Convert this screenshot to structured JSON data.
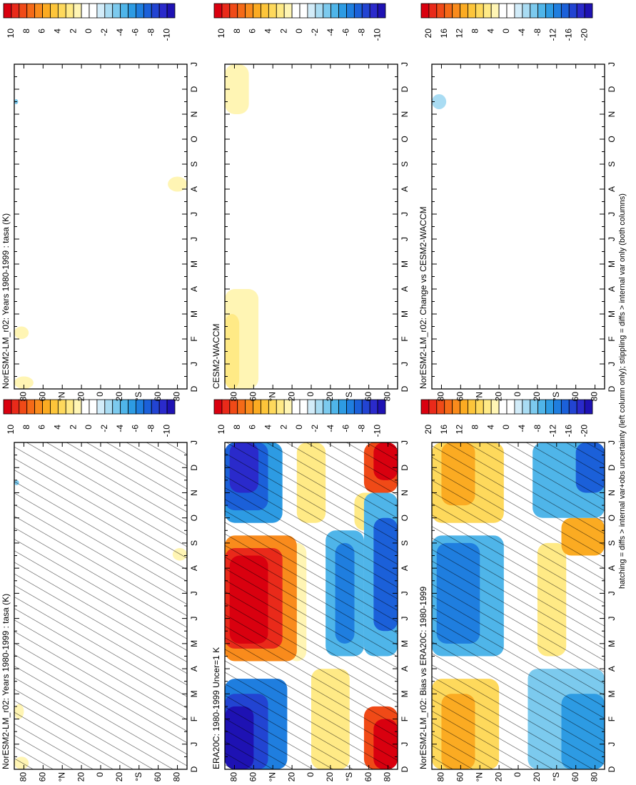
{
  "chart_data": [
    {
      "type": "contour",
      "title": "NorESM2-LM_r02: Years 1980-1999 : tasa (K)",
      "hatching": true,
      "categories": [
        "D",
        "J",
        "F",
        "M",
        "A",
        "M",
        "J",
        "J",
        "A",
        "S",
        "O",
        "N",
        "D",
        "J"
      ],
      "ylim": [
        90,
        -90
      ],
      "yticks": [
        {
          "value": 80,
          "label": "80"
        },
        {
          "value": 60,
          "label": "60"
        },
        {
          "value": 40,
          "label": "°N"
        },
        {
          "value": 20,
          "label": "20"
        },
        {
          "value": 0,
          "label": "0"
        },
        {
          "value": -20,
          "label": "20"
        },
        {
          "value": -40,
          "label": "°S"
        },
        {
          "value": -60,
          "label": "60"
        },
        {
          "value": -80,
          "label": "80"
        }
      ],
      "colorbar_ticks": [
        10,
        8,
        6,
        4,
        2,
        0,
        -2,
        -4,
        -6,
        -8,
        -10
      ]
    },
    {
      "type": "contour",
      "title": "NorESM2-LM_r02: Years 1980-1999 : tasa (K)",
      "hatching": false,
      "categories": [
        "D",
        "J",
        "F",
        "M",
        "A",
        "M",
        "J",
        "J",
        "A",
        "S",
        "O",
        "N",
        "D",
        "J"
      ],
      "ylim": [
        90,
        -90
      ],
      "yticks": [
        {
          "value": 80,
          "label": "80"
        },
        {
          "value": 60,
          "label": "60"
        },
        {
          "value": 40,
          "label": "°N"
        },
        {
          "value": 20,
          "label": "20"
        },
        {
          "value": 0,
          "label": "0"
        },
        {
          "value": -20,
          "label": "20"
        },
        {
          "value": -40,
          "label": "°S"
        },
        {
          "value": -60,
          "label": "60"
        },
        {
          "value": -80,
          "label": "80"
        }
      ],
      "colorbar_ticks": [
        10,
        8,
        6,
        4,
        2,
        0,
        -2,
        -4,
        -6,
        -8,
        -10
      ]
    },
    {
      "type": "contour",
      "title": "ERA20C: 1980-1999 Uncer=1 K",
      "hatching": true,
      "categories": [
        "D",
        "J",
        "F",
        "M",
        "A",
        "M",
        "J",
        "J",
        "A",
        "S",
        "O",
        "N",
        "D",
        "J"
      ],
      "ylim": [
        90,
        -90
      ],
      "yticks": [
        {
          "value": 80,
          "label": "80"
        },
        {
          "value": 60,
          "label": "60"
        },
        {
          "value": 40,
          "label": "°N"
        },
        {
          "value": 20,
          "label": "20"
        },
        {
          "value": 0,
          "label": "0"
        },
        {
          "value": -20,
          "label": "20"
        },
        {
          "value": -40,
          "label": "°S"
        },
        {
          "value": -60,
          "label": "60"
        },
        {
          "value": -80,
          "label": "80"
        }
      ],
      "colorbar_ticks": [
        10,
        8,
        6,
        4,
        2,
        0,
        -2,
        -4,
        -6,
        -8,
        -10
      ]
    },
    {
      "type": "contour",
      "title": "CESM2-WACCM",
      "hatching": false,
      "categories": [
        "D",
        "J",
        "F",
        "M",
        "A",
        "M",
        "J",
        "J",
        "A",
        "S",
        "O",
        "N",
        "D",
        "J"
      ],
      "ylim": [
        90,
        -90
      ],
      "yticks": [
        {
          "value": 80,
          "label": "80"
        },
        {
          "value": 60,
          "label": "60"
        },
        {
          "value": 40,
          "label": "°N"
        },
        {
          "value": 20,
          "label": "20"
        },
        {
          "value": 0,
          "label": "0"
        },
        {
          "value": -20,
          "label": "20"
        },
        {
          "value": -40,
          "label": "°S"
        },
        {
          "value": -60,
          "label": "60"
        },
        {
          "value": -80,
          "label": "80"
        }
      ],
      "colorbar_ticks": [
        10,
        8,
        6,
        4,
        2,
        0,
        -2,
        -4,
        -6,
        -8,
        -10
      ]
    },
    {
      "type": "contour",
      "title": "NorESM2-LM_r02: Bias vs ERA20C: 1980-1999",
      "hatching": true,
      "categories": [
        "D",
        "J",
        "F",
        "M",
        "A",
        "M",
        "J",
        "J",
        "A",
        "S",
        "O",
        "N",
        "D",
        "J"
      ],
      "ylim": [
        90,
        -90
      ],
      "yticks": [
        {
          "value": 80,
          "label": "80"
        },
        {
          "value": 60,
          "label": "60"
        },
        {
          "value": 40,
          "label": "°N"
        },
        {
          "value": 20,
          "label": "20"
        },
        {
          "value": 0,
          "label": "0"
        },
        {
          "value": -20,
          "label": "20"
        },
        {
          "value": -40,
          "label": "°S"
        },
        {
          "value": -60,
          "label": "60"
        },
        {
          "value": -80,
          "label": "80"
        }
      ],
      "colorbar_ticks": [
        20,
        16,
        12,
        8,
        4,
        0,
        -4,
        -8,
        -12,
        -16,
        -20
      ]
    },
    {
      "type": "contour",
      "title": "NorESM2-LM_r02: Change vs CESM2-WACCM",
      "hatching": false,
      "categories": [
        "D",
        "J",
        "F",
        "M",
        "A",
        "M",
        "J",
        "J",
        "A",
        "S",
        "O",
        "N",
        "D",
        "J"
      ],
      "ylim": [
        90,
        -90
      ],
      "yticks": [
        {
          "value": 80,
          "label": "80"
        },
        {
          "value": 60,
          "label": "60"
        },
        {
          "value": 40,
          "label": "°N"
        },
        {
          "value": 20,
          "label": "20"
        },
        {
          "value": 0,
          "label": "0"
        },
        {
          "value": -20,
          "label": "20"
        },
        {
          "value": -40,
          "label": "°S"
        },
        {
          "value": -60,
          "label": "60"
        },
        {
          "value": -80,
          "label": "80"
        }
      ],
      "colorbar_ticks": [
        20,
        16,
        12,
        8,
        4,
        0,
        -4,
        -8,
        -12,
        -16,
        -20
      ]
    }
  ],
  "palette": [
    "#d9000f",
    "#e92a1a",
    "#f04a17",
    "#f56a17",
    "#f98b1c",
    "#fbab22",
    "#fdc53a",
    "#fed95c",
    "#ffea86",
    "#fff5b4",
    "#ffffff",
    "#ffffff",
    "#d2ecf9",
    "#a9dcf3",
    "#7ccaee",
    "#4fb5e9",
    "#2d9be3",
    "#1f7edf",
    "#1b60d9",
    "#2244d2",
    "#2a2acb",
    "#1e12b3"
  ],
  "caption": "hatching = diffs > internal var+obs uncertainty (left column only); stippling = diffs > internal var only (both columns)"
}
